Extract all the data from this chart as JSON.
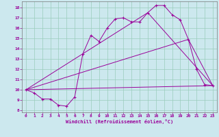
{
  "xlabel": "Windchill (Refroidissement éolien,°C)",
  "bg_color": "#cce8ee",
  "line_color": "#990099",
  "grid_color": "#99ccbb",
  "xlim": [
    -0.5,
    23.5
  ],
  "ylim": [
    7.8,
    18.6
  ],
  "xticks": [
    0,
    1,
    2,
    3,
    4,
    5,
    6,
    7,
    8,
    9,
    10,
    11,
    12,
    13,
    14,
    15,
    16,
    17,
    18,
    19,
    20,
    21,
    22,
    23
  ],
  "yticks": [
    8,
    9,
    10,
    11,
    12,
    13,
    14,
    15,
    16,
    17,
    18
  ],
  "series1_x": [
    0,
    1,
    2,
    3,
    4,
    5,
    6,
    7,
    8,
    9,
    10,
    11,
    12,
    13,
    14,
    15,
    16,
    17,
    18,
    19,
    20,
    21,
    22,
    23
  ],
  "series1_y": [
    10.0,
    9.7,
    9.1,
    9.1,
    8.5,
    8.4,
    9.3,
    13.5,
    15.3,
    14.7,
    16.0,
    16.9,
    17.0,
    16.6,
    16.6,
    17.5,
    18.2,
    18.2,
    17.3,
    16.8,
    14.9,
    12.0,
    10.5,
    10.4
  ],
  "line1_x": [
    0,
    23
  ],
  "line1_y": [
    10.0,
    10.4
  ],
  "line2_x": [
    0,
    20,
    23
  ],
  "line2_y": [
    10.0,
    14.9,
    10.4
  ],
  "line3_x": [
    0,
    15,
    23
  ],
  "line3_y": [
    10.0,
    17.5,
    10.4
  ]
}
